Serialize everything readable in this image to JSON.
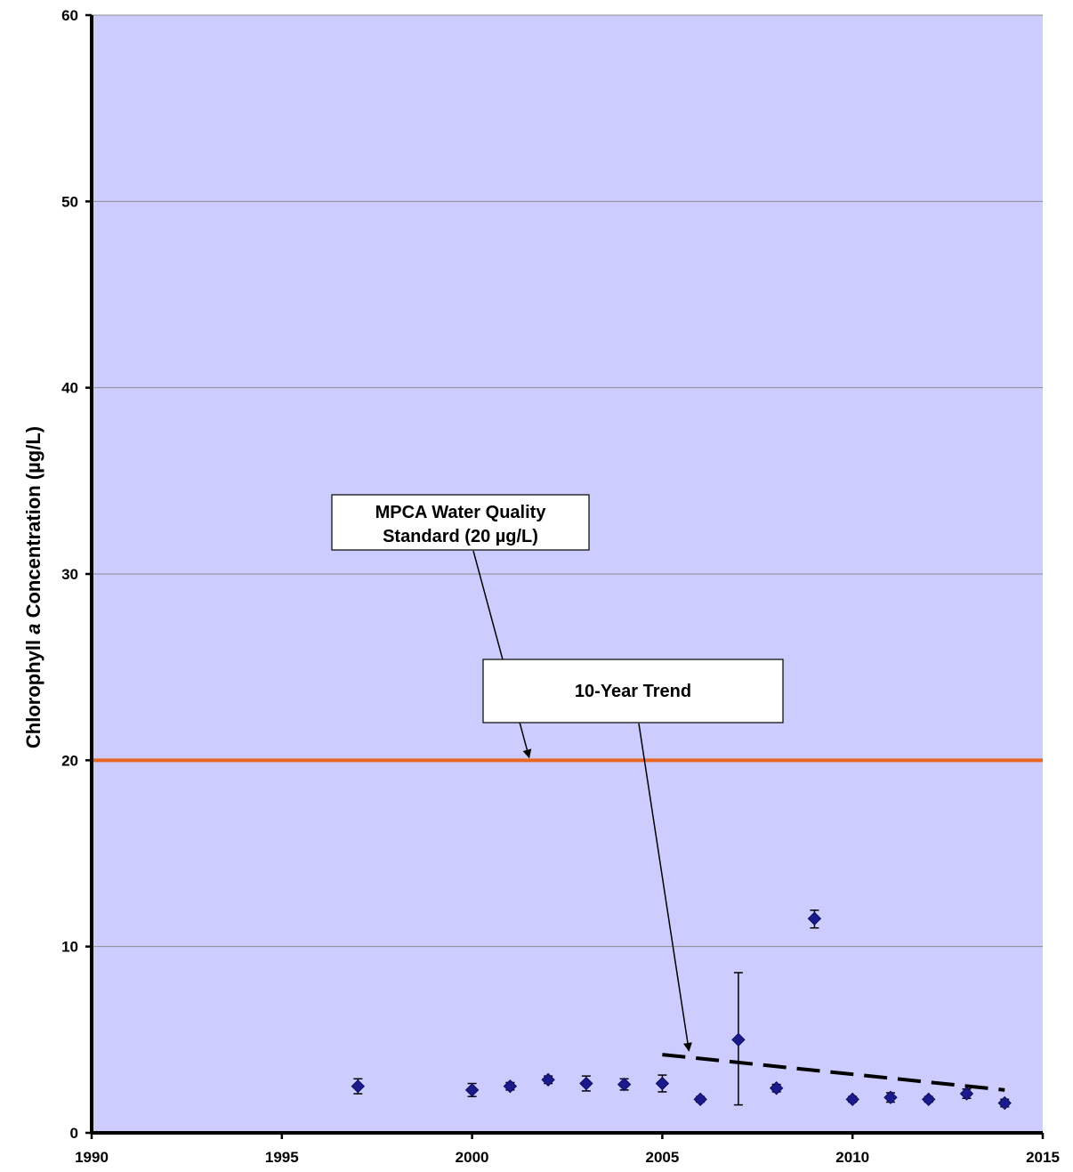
{
  "chart_data": {
    "type": "scatter",
    "title": "",
    "xlabel": "",
    "ylabel": {
      "before": "Chlorophyll ",
      "italic": "a",
      "after": " Concentration (µg/L)"
    },
    "xlim": [
      1990,
      2015
    ],
    "ylim": [
      0,
      60
    ],
    "xticks": [
      "1990",
      "1995",
      "2000",
      "2005",
      "2010",
      "2015"
    ],
    "yticks": [
      "0",
      "10",
      "20",
      "30",
      "40",
      "50",
      "60"
    ],
    "grid": true,
    "legend": "none",
    "colors": {
      "plot_background": "#ccccff",
      "marker": "#1a1a8c",
      "standard_line": "#e8661f",
      "trend_line": "#000000",
      "grid": "#8c8c8c"
    },
    "series": [
      {
        "marker": "diamond",
        "x": [
          1997,
          2000,
          2001,
          2002,
          2003,
          2004,
          2005,
          2006,
          2007,
          2008,
          2009,
          2010,
          2011,
          2012,
          2013,
          2014
        ],
        "y": [
          2.5,
          2.3,
          2.5,
          2.85,
          2.65,
          2.6,
          2.65,
          1.8,
          5.0,
          2.4,
          11.5,
          1.8,
          1.9,
          1.8,
          2.1,
          1.6
        ],
        "err_low": [
          2.1,
          1.95,
          2.3,
          2.65,
          2.25,
          2.3,
          2.2,
          1.65,
          1.5,
          2.2,
          11.0,
          1.65,
          1.65,
          1.65,
          1.85,
          1.4
        ],
        "err_high": [
          2.9,
          2.65,
          2.7,
          3.05,
          3.05,
          2.9,
          3.1,
          1.95,
          8.6,
          2.6,
          11.95,
          1.95,
          2.15,
          1.95,
          2.35,
          1.8
        ]
      }
    ],
    "reference_line": {
      "y": 20
    },
    "trend_line": {
      "x": [
        2005,
        2014
      ],
      "y": [
        4.2,
        2.3
      ]
    },
    "annotations": [
      {
        "id": "standard",
        "lines": [
          "MPCA Water Quality",
          "Standard (20 µg/L)"
        ],
        "arrow_to": {
          "x": 2001.5,
          "y": 20.0
        }
      },
      {
        "id": "trend",
        "lines": [
          "10-Year Trend"
        ],
        "arrow_to": {
          "x": 2005.7,
          "y": 4.4
        }
      }
    ]
  }
}
